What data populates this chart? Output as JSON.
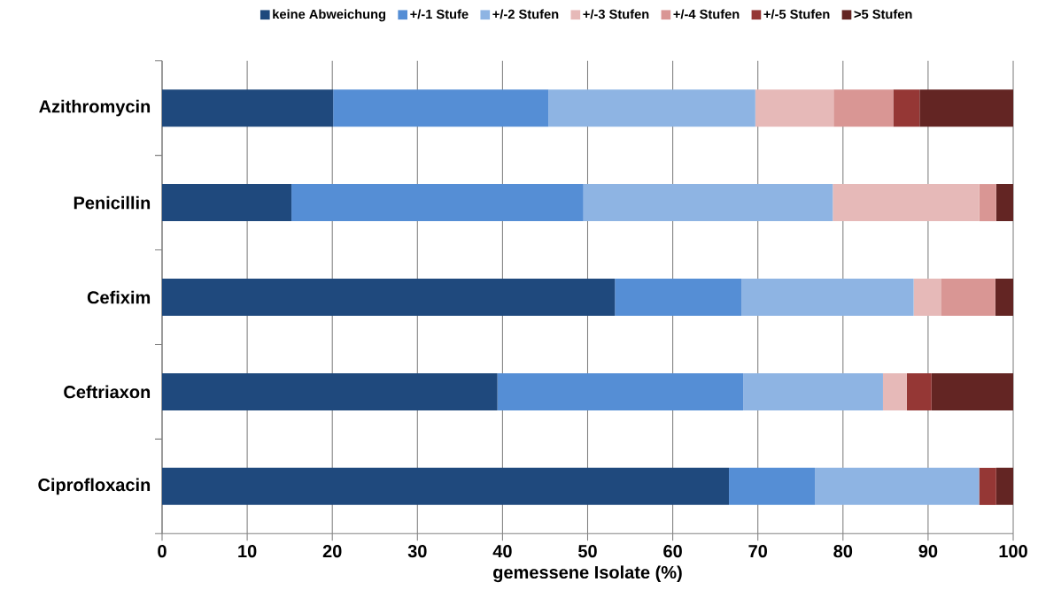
{
  "chart_data": {
    "type": "bar",
    "orientation": "horizontal",
    "stacked": true,
    "xlabel": "gemessene Isolate (%)",
    "categories": [
      "Azithromycin",
      "Penicillin",
      "Cefixim",
      "Ceftriaxon",
      "Ciprofloxacin"
    ],
    "series": [
      {
        "name": "keine Abweichung",
        "color": "#1f497d",
        "values": [
          20.1,
          15.2,
          53.2,
          39.4,
          66.6
        ]
      },
      {
        "name": "+/-1 Stufe",
        "color": "#558ed5",
        "values": [
          25.3,
          34.3,
          14.9,
          28.9,
          10.1
        ]
      },
      {
        "name": "+/-2 Stufen",
        "color": "#8eb4e3",
        "values": [
          24.3,
          29.3,
          20.2,
          16.4,
          19.3
        ]
      },
      {
        "name": "+/-3 Stufen",
        "color": "#e6b9b8",
        "values": [
          9.2,
          17.2,
          3.2,
          2.8,
          0
        ]
      },
      {
        "name": "+/-4 Stufen",
        "color": "#d99694",
        "values": [
          7.0,
          2.0,
          6.4,
          0,
          0
        ]
      },
      {
        "name": "+/-5 Stufen",
        "color": "#953735",
        "values": [
          3.1,
          0,
          0,
          2.9,
          2.0
        ]
      },
      {
        "name": ">5 Stufen",
        "color": "#632523",
        "values": [
          11.0,
          2.0,
          2.1,
          9.6,
          2.0
        ]
      }
    ],
    "xlim": [
      0,
      100
    ],
    "xticks": [
      0,
      10,
      20,
      30,
      40,
      50,
      60,
      70,
      80,
      90,
      100
    ],
    "grid": "x",
    "legend": "top"
  }
}
